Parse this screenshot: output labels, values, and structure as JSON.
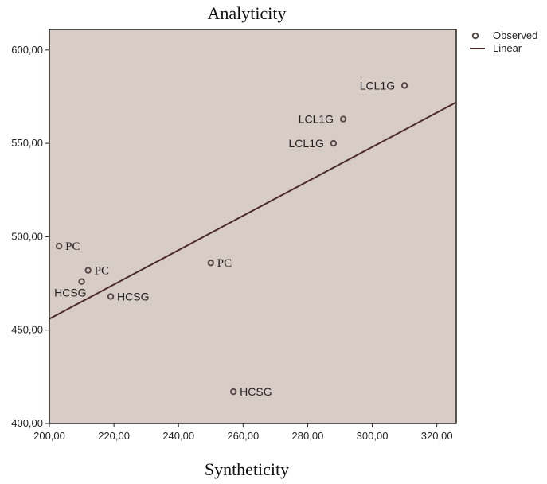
{
  "chart_data": {
    "type": "scatter",
    "title": "Analyticity",
    "xlabel": "Syntheticity",
    "ylabel": "",
    "xlim": [
      200,
      326
    ],
    "ylim": [
      400,
      611
    ],
    "xticks": [
      "200,00",
      "220,00",
      "240,00",
      "260,00",
      "280,00",
      "300,00",
      "320,00"
    ],
    "yticks": [
      "400,00",
      "450,00",
      "500,00",
      "550,00",
      "600,00"
    ],
    "xtick_values": [
      200,
      220,
      240,
      260,
      280,
      300,
      320
    ],
    "ytick_values": [
      400,
      450,
      500,
      550,
      600
    ],
    "points": [
      {
        "x": 310,
        "y": 581,
        "label": "LCL1G",
        "label_side": "left",
        "label_font": "sans"
      },
      {
        "x": 291,
        "y": 563,
        "label": "LCL1G",
        "label_side": "left",
        "label_font": "sans"
      },
      {
        "x": 288,
        "y": 550,
        "label": "LCL1G",
        "label_side": "left",
        "label_font": "sans"
      },
      {
        "x": 203,
        "y": 495,
        "label": "PC",
        "label_side": "right",
        "label_font": "serif"
      },
      {
        "x": 212,
        "y": 482,
        "label": "PC",
        "label_side": "right",
        "label_font": "serif"
      },
      {
        "x": 210,
        "y": 476,
        "label": "HCSG",
        "label_side": "below-left",
        "label_font": "sans"
      },
      {
        "x": 219,
        "y": 468,
        "label": "HCSG",
        "label_side": "right",
        "label_font": "sans"
      },
      {
        "x": 250,
        "y": 486,
        "label": "PC",
        "label_side": "right",
        "label_font": "serif"
      },
      {
        "x": 257,
        "y": 417,
        "label": "HCSG",
        "label_side": "right",
        "label_font": "sans"
      }
    ],
    "fit_line": {
      "type": "linear",
      "x": [
        200,
        326
      ],
      "y": [
        456,
        572
      ]
    },
    "legend": {
      "position": "top-right",
      "entries": [
        "Observed",
        "Linear"
      ]
    },
    "grid": false,
    "colors": {
      "plot_bg": "#d8ccc6",
      "marker": "#5a4a4a",
      "line": "#4a2a2a",
      "frame": "#222222"
    }
  }
}
